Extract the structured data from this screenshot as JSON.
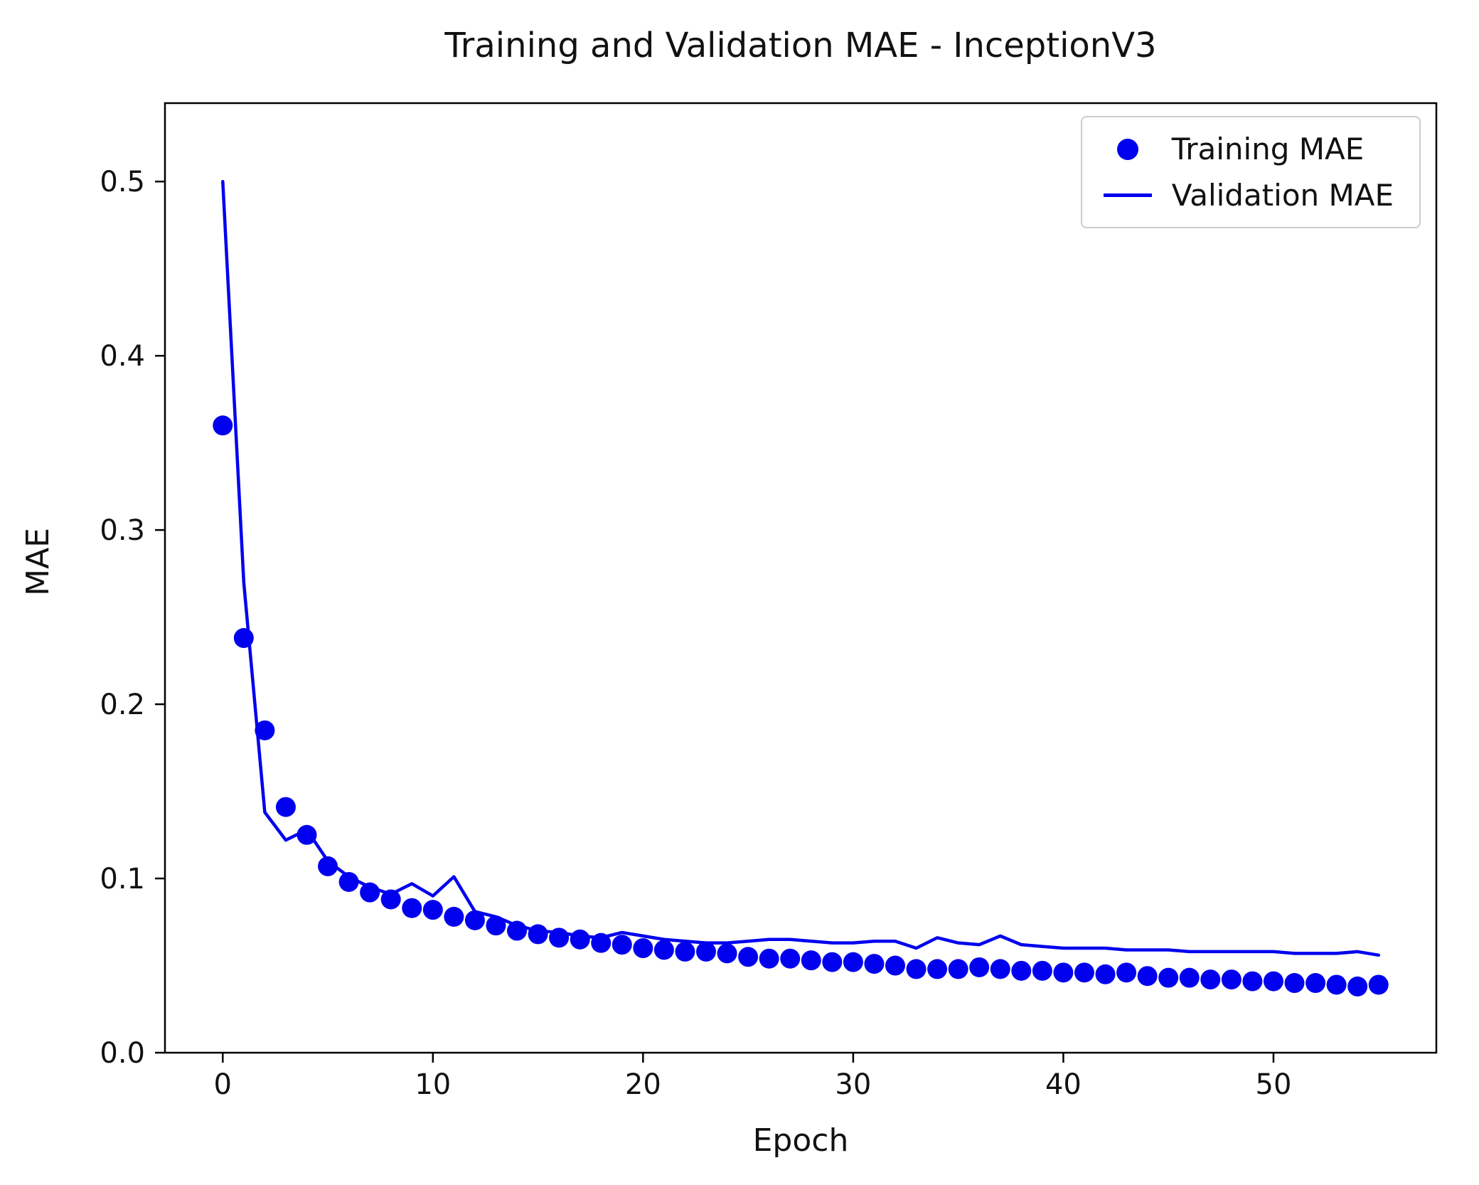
{
  "colors": {
    "accent": "#0000EE",
    "axis": "#000000",
    "text": "#111111",
    "legend_border": "#cccccc",
    "background": "#ffffff"
  },
  "chart_data": {
    "type": "line",
    "title": "Training and Validation MAE - InceptionV3",
    "xlabel": "Epoch",
    "ylabel": "MAE",
    "x": [
      0,
      1,
      2,
      3,
      4,
      5,
      6,
      7,
      8,
      9,
      10,
      11,
      12,
      13,
      14,
      15,
      16,
      17,
      18,
      19,
      20,
      21,
      22,
      23,
      24,
      25,
      26,
      27,
      28,
      29,
      30,
      31,
      32,
      33,
      34,
      35,
      36,
      37,
      38,
      39,
      40,
      41,
      42,
      43,
      44,
      45,
      46,
      47,
      48,
      49,
      50,
      51,
      52,
      53,
      54,
      55
    ],
    "series": [
      {
        "name": "Training MAE",
        "style": "markers",
        "color": "#0000EE",
        "values": [
          0.36,
          0.238,
          0.185,
          0.141,
          0.125,
          0.107,
          0.098,
          0.092,
          0.088,
          0.083,
          0.082,
          0.078,
          0.076,
          0.073,
          0.07,
          0.068,
          0.066,
          0.065,
          0.063,
          0.062,
          0.06,
          0.059,
          0.058,
          0.058,
          0.057,
          0.055,
          0.054,
          0.054,
          0.053,
          0.052,
          0.052,
          0.051,
          0.05,
          0.048,
          0.048,
          0.048,
          0.049,
          0.048,
          0.047,
          0.047,
          0.046,
          0.046,
          0.045,
          0.046,
          0.044,
          0.043,
          0.043,
          0.042,
          0.042,
          0.041,
          0.041,
          0.04,
          0.04,
          0.039,
          0.038,
          0.039
        ]
      },
      {
        "name": "Validation MAE",
        "style": "line",
        "color": "#0000EE",
        "values": [
          0.5,
          0.27,
          0.138,
          0.122,
          0.128,
          0.11,
          0.101,
          0.095,
          0.091,
          0.097,
          0.09,
          0.101,
          0.081,
          0.078,
          0.073,
          0.07,
          0.069,
          0.067,
          0.066,
          0.069,
          0.067,
          0.065,
          0.064,
          0.063,
          0.063,
          0.064,
          0.065,
          0.065,
          0.064,
          0.063,
          0.063,
          0.064,
          0.064,
          0.06,
          0.066,
          0.063,
          0.062,
          0.067,
          0.062,
          0.061,
          0.06,
          0.06,
          0.06,
          0.059,
          0.059,
          0.059,
          0.058,
          0.058,
          0.058,
          0.058,
          0.058,
          0.057,
          0.057,
          0.057,
          0.058,
          0.056
        ]
      }
    ],
    "xlim": [
      -2.75,
      57.75
    ],
    "ylim": [
      0,
      0.545
    ],
    "xticks": [
      0,
      10,
      20,
      30,
      40,
      50
    ],
    "yticks": [
      0.0,
      0.1,
      0.2,
      0.3,
      0.4,
      0.5
    ],
    "xtick_labels": [
      "0",
      "10",
      "20",
      "30",
      "40",
      "50"
    ],
    "ytick_labels": [
      "0.0",
      "0.1",
      "0.2",
      "0.3",
      "0.4",
      "0.5"
    ],
    "grid": false,
    "legend_position": "upper right"
  }
}
